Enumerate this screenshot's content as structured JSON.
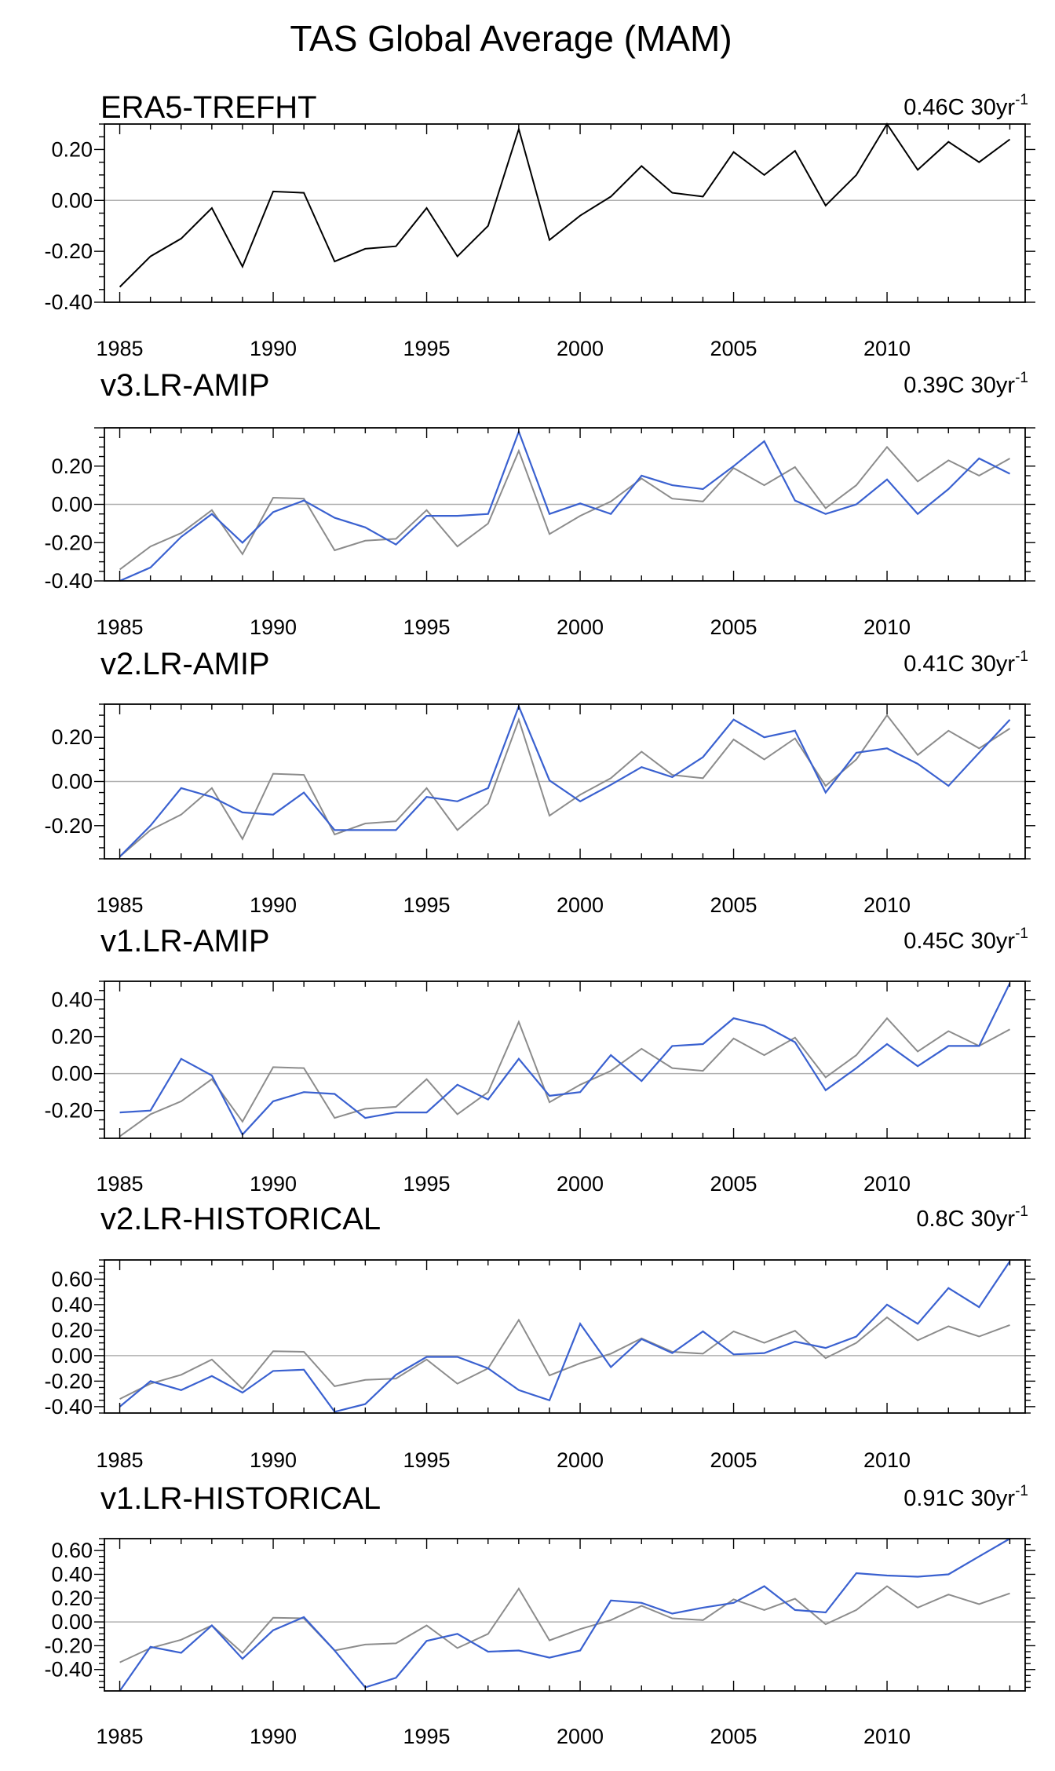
{
  "title": "TAS Global Average (MAM)",
  "colors": {
    "reference": "#000000",
    "reference_overlay": "#8c8c8c",
    "model": "#3a61d0",
    "zero_line": "#b0b0b0",
    "frame": "#000000"
  },
  "chart_data": [
    {
      "type": "line",
      "title": "ERA5-TREFHT",
      "trend_label": "0.46C 30yr",
      "trend_superscript": "-1",
      "xlabel": "",
      "ylabel": "",
      "xlim": [
        1984.5,
        2014.5
      ],
      "ylim": [
        -0.4,
        0.3
      ],
      "yticks": [
        -0.4,
        -0.2,
        0.0,
        0.2
      ],
      "yticklabels": [
        "-0.40",
        "-0.20",
        "0.00",
        "0.20"
      ],
      "xticks": [
        1985,
        1990,
        1995,
        2000,
        2005,
        2010
      ],
      "xticklabels": [
        "1985",
        "1990",
        "1995",
        "2000",
        "2005",
        "2010"
      ],
      "x": [
        1985,
        1986,
        1987,
        1988,
        1989,
        1990,
        1991,
        1992,
        1993,
        1994,
        1995,
        1996,
        1997,
        1998,
        1999,
        2000,
        2001,
        2002,
        2003,
        2004,
        2005,
        2006,
        2007,
        2008,
        2009,
        2010,
        2011,
        2012,
        2013,
        2014
      ],
      "series": [
        {
          "name": "ERA5-TREFHT",
          "role": "reference",
          "values": [
            -0.34,
            -0.22,
            -0.15,
            -0.03,
            -0.26,
            0.035,
            0.03,
            -0.24,
            -0.19,
            -0.18,
            -0.03,
            -0.22,
            -0.1,
            0.28,
            -0.155,
            -0.06,
            0.015,
            0.135,
            0.03,
            0.015,
            0.19,
            0.1,
            0.195,
            -0.02,
            0.1,
            0.3,
            0.12,
            0.23,
            0.15,
            0.24
          ]
        }
      ]
    },
    {
      "type": "line",
      "title": "v3.LR-AMIP",
      "trend_label": "0.39C 30yr",
      "trend_superscript": "-1",
      "xlabel": "",
      "ylabel": "",
      "xlim": [
        1984.5,
        2014.5
      ],
      "ylim": [
        -0.4,
        0.4
      ],
      "yticks": [
        -0.4,
        -0.2,
        0.0,
        0.2
      ],
      "yticklabels": [
        "-0.40",
        "-0.20",
        "0.00",
        "0.20"
      ],
      "xticks": [
        1985,
        1990,
        1995,
        2000,
        2005,
        2010
      ],
      "xticklabels": [
        "1985",
        "1990",
        "1995",
        "2000",
        "2005",
        "2010"
      ],
      "x": [
        1985,
        1986,
        1987,
        1988,
        1989,
        1990,
        1991,
        1992,
        1993,
        1994,
        1995,
        1996,
        1997,
        1998,
        1999,
        2000,
        2001,
        2002,
        2003,
        2004,
        2005,
        2006,
        2007,
        2008,
        2009,
        2010,
        2011,
        2012,
        2013,
        2014
      ],
      "series": [
        {
          "name": "ERA5-TREFHT",
          "role": "reference_overlay",
          "values": [
            -0.34,
            -0.22,
            -0.15,
            -0.03,
            -0.26,
            0.035,
            0.03,
            -0.24,
            -0.19,
            -0.18,
            -0.03,
            -0.22,
            -0.1,
            0.28,
            -0.155,
            -0.06,
            0.015,
            0.135,
            0.03,
            0.015,
            0.19,
            0.1,
            0.195,
            -0.02,
            0.1,
            0.3,
            0.12,
            0.23,
            0.15,
            0.24
          ]
        },
        {
          "name": "v3.LR-AMIP",
          "role": "model",
          "values": [
            -0.4,
            -0.33,
            -0.17,
            -0.05,
            -0.2,
            -0.04,
            0.02,
            -0.07,
            -0.12,
            -0.21,
            -0.06,
            -0.06,
            -0.05,
            0.38,
            -0.05,
            0.005,
            -0.05,
            0.15,
            0.1,
            0.08,
            0.2,
            0.33,
            0.02,
            -0.05,
            0.0,
            0.13,
            -0.05,
            0.08,
            0.24,
            0.16
          ]
        }
      ]
    },
    {
      "type": "line",
      "title": "v2.LR-AMIP",
      "trend_label": "0.41C 30yr",
      "trend_superscript": "-1",
      "xlabel": "",
      "ylabel": "",
      "xlim": [
        1984.5,
        2014.5
      ],
      "ylim": [
        -0.35,
        0.35
      ],
      "yticks": [
        -0.2,
        0.0,
        0.2
      ],
      "yticklabels": [
        "-0.20",
        "0.00",
        "0.20"
      ],
      "xticks": [
        1985,
        1990,
        1995,
        2000,
        2005,
        2010
      ],
      "xticklabels": [
        "1985",
        "1990",
        "1995",
        "2000",
        "2005",
        "2010"
      ],
      "x": [
        1985,
        1986,
        1987,
        1988,
        1989,
        1990,
        1991,
        1992,
        1993,
        1994,
        1995,
        1996,
        1997,
        1998,
        1999,
        2000,
        2001,
        2002,
        2003,
        2004,
        2005,
        2006,
        2007,
        2008,
        2009,
        2010,
        2011,
        2012,
        2013,
        2014
      ],
      "series": [
        {
          "name": "ERA5-TREFHT",
          "role": "reference_overlay",
          "values": [
            -0.34,
            -0.22,
            -0.15,
            -0.03,
            -0.26,
            0.035,
            0.03,
            -0.24,
            -0.19,
            -0.18,
            -0.03,
            -0.22,
            -0.1,
            0.28,
            -0.155,
            -0.06,
            0.015,
            0.135,
            0.03,
            0.015,
            0.19,
            0.1,
            0.195,
            -0.02,
            0.1,
            0.3,
            0.12,
            0.23,
            0.15,
            0.24
          ]
        },
        {
          "name": "v2.LR-AMIP",
          "role": "model",
          "values": [
            -0.34,
            -0.2,
            -0.03,
            -0.07,
            -0.14,
            -0.15,
            -0.05,
            -0.22,
            -0.22,
            -0.22,
            -0.07,
            -0.09,
            -0.03,
            0.34,
            0.005,
            -0.09,
            -0.015,
            0.065,
            0.02,
            0.11,
            0.28,
            0.2,
            0.23,
            -0.05,
            0.13,
            0.15,
            0.08,
            -0.02,
            0.13,
            0.28
          ]
        }
      ]
    },
    {
      "type": "line",
      "title": "v1.LR-AMIP",
      "trend_label": "0.45C 30yr",
      "trend_superscript": "-1",
      "xlabel": "",
      "ylabel": "",
      "xlim": [
        1984.5,
        2014.5
      ],
      "ylim": [
        -0.35,
        0.5
      ],
      "yticks": [
        -0.2,
        0.0,
        0.2,
        0.4
      ],
      "yticklabels": [
        "-0.20",
        "0.00",
        "0.20",
        "0.40"
      ],
      "xticks": [
        1985,
        1990,
        1995,
        2000,
        2005,
        2010
      ],
      "xticklabels": [
        "1985",
        "1990",
        "1995",
        "2000",
        "2005",
        "2010"
      ],
      "x": [
        1985,
        1986,
        1987,
        1988,
        1989,
        1990,
        1991,
        1992,
        1993,
        1994,
        1995,
        1996,
        1997,
        1998,
        1999,
        2000,
        2001,
        2002,
        2003,
        2004,
        2005,
        2006,
        2007,
        2008,
        2009,
        2010,
        2011,
        2012,
        2013,
        2014
      ],
      "series": [
        {
          "name": "ERA5-TREFHT",
          "role": "reference_overlay",
          "values": [
            -0.34,
            -0.22,
            -0.15,
            -0.03,
            -0.26,
            0.035,
            0.03,
            -0.24,
            -0.19,
            -0.18,
            -0.03,
            -0.22,
            -0.1,
            0.28,
            -0.155,
            -0.06,
            0.015,
            0.135,
            0.03,
            0.015,
            0.19,
            0.1,
            0.195,
            -0.02,
            0.1,
            0.3,
            0.12,
            0.23,
            0.15,
            0.24
          ]
        },
        {
          "name": "v1.LR-AMIP",
          "role": "model",
          "values": [
            -0.21,
            -0.2,
            0.08,
            -0.01,
            -0.33,
            -0.15,
            -0.1,
            -0.11,
            -0.24,
            -0.21,
            -0.21,
            -0.06,
            -0.14,
            0.08,
            -0.12,
            -0.1,
            0.1,
            -0.04,
            0.15,
            0.16,
            0.3,
            0.26,
            0.17,
            -0.09,
            0.03,
            0.16,
            0.04,
            0.15,
            0.15,
            0.49
          ]
        }
      ]
    },
    {
      "type": "line",
      "title": "v2.LR-HISTORICAL",
      "trend_label": "0.8C 30yr",
      "trend_superscript": "-1",
      "xlabel": "",
      "ylabel": "",
      "xlim": [
        1984.5,
        2014.5
      ],
      "ylim": [
        -0.45,
        0.75
      ],
      "yticks": [
        -0.4,
        -0.2,
        0.0,
        0.2,
        0.4,
        0.6
      ],
      "yticklabels": [
        "-0.40",
        "-0.20",
        "0.00",
        "0.20",
        "0.40",
        "0.60"
      ],
      "xticks": [
        1985,
        1990,
        1995,
        2000,
        2005,
        2010
      ],
      "xticklabels": [
        "1985",
        "1990",
        "1995",
        "2000",
        "2005",
        "2010"
      ],
      "x": [
        1985,
        1986,
        1987,
        1988,
        1989,
        1990,
        1991,
        1992,
        1993,
        1994,
        1995,
        1996,
        1997,
        1998,
        1999,
        2000,
        2001,
        2002,
        2003,
        2004,
        2005,
        2006,
        2007,
        2008,
        2009,
        2010,
        2011,
        2012,
        2013,
        2014
      ],
      "series": [
        {
          "name": "ERA5-TREFHT",
          "role": "reference_overlay",
          "values": [
            -0.34,
            -0.22,
            -0.15,
            -0.03,
            -0.26,
            0.035,
            0.03,
            -0.24,
            -0.19,
            -0.18,
            -0.03,
            -0.22,
            -0.1,
            0.28,
            -0.155,
            -0.06,
            0.015,
            0.135,
            0.03,
            0.015,
            0.19,
            0.1,
            0.195,
            -0.02,
            0.1,
            0.3,
            0.12,
            0.23,
            0.15,
            0.24
          ]
        },
        {
          "name": "v2.LR-HISTORICAL",
          "role": "model",
          "values": [
            -0.4,
            -0.2,
            -0.27,
            -0.16,
            -0.29,
            -0.12,
            -0.11,
            -0.44,
            -0.38,
            -0.15,
            -0.01,
            -0.01,
            -0.1,
            -0.27,
            -0.35,
            0.25,
            -0.09,
            0.13,
            0.02,
            0.19,
            0.01,
            0.02,
            0.11,
            0.06,
            0.15,
            0.4,
            0.25,
            0.53,
            0.38,
            0.74
          ]
        }
      ]
    },
    {
      "type": "line",
      "title": "v1.LR-HISTORICAL",
      "trend_label": "0.91C 30yr",
      "trend_superscript": "-1",
      "xlabel": "",
      "ylabel": "",
      "xlim": [
        1984.5,
        2014.5
      ],
      "ylim": [
        -0.58,
        0.7
      ],
      "yticks": [
        -0.4,
        -0.2,
        0.0,
        0.2,
        0.4,
        0.6
      ],
      "yticklabels": [
        "-0.40",
        "-0.20",
        "0.00",
        "0.20",
        "0.40",
        "0.60"
      ],
      "xticks": [
        1985,
        1990,
        1995,
        2000,
        2005,
        2010
      ],
      "xticklabels": [
        "1985",
        "1990",
        "1995",
        "2000",
        "2005",
        "2010"
      ],
      "x": [
        1985,
        1986,
        1987,
        1988,
        1989,
        1990,
        1991,
        1992,
        1993,
        1994,
        1995,
        1996,
        1997,
        1998,
        1999,
        2000,
        2001,
        2002,
        2003,
        2004,
        2005,
        2006,
        2007,
        2008,
        2009,
        2010,
        2011,
        2012,
        2013,
        2014
      ],
      "series": [
        {
          "name": "ERA5-TREFHT",
          "role": "reference_overlay",
          "values": [
            -0.34,
            -0.22,
            -0.15,
            -0.03,
            -0.26,
            0.035,
            0.03,
            -0.24,
            -0.19,
            -0.18,
            -0.03,
            -0.22,
            -0.1,
            0.28,
            -0.155,
            -0.06,
            0.015,
            0.135,
            0.03,
            0.015,
            0.19,
            0.1,
            0.195,
            -0.02,
            0.1,
            0.3,
            0.12,
            0.23,
            0.15,
            0.24
          ]
        },
        {
          "name": "v1.LR-HISTORICAL",
          "role": "model",
          "values": [
            -0.58,
            -0.21,
            -0.26,
            -0.03,
            -0.31,
            -0.07,
            0.04,
            -0.24,
            -0.55,
            -0.47,
            -0.16,
            -0.1,
            -0.25,
            -0.24,
            -0.3,
            -0.24,
            0.18,
            0.16,
            0.07,
            0.12,
            0.16,
            0.3,
            0.1,
            0.08,
            0.41,
            0.39,
            0.38,
            0.4,
            0.55,
            0.7
          ]
        }
      ]
    }
  ]
}
